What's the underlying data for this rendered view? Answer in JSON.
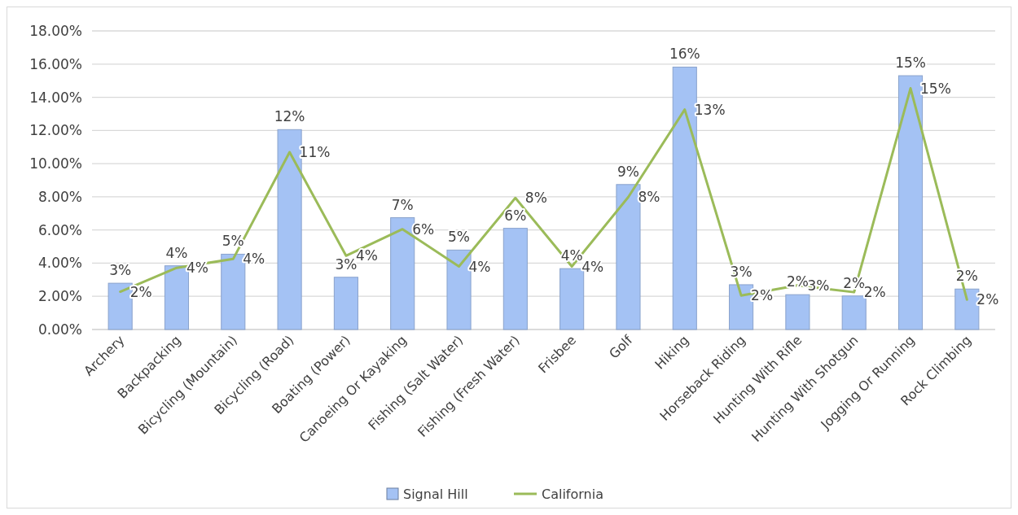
{
  "chart_data": {
    "type": "bar",
    "categories": [
      "Archery",
      "Backpacking",
      "Bicycling (Mountain)",
      "Bicycling (Road)",
      "Boating (Power)",
      "Canoeing Or Kayaking",
      "Fishing (Salt Water)",
      "Fishing (Fresh Water)",
      "Frisbee",
      "Golf",
      "Hiking",
      "Horseback Riding",
      "Hunting With Rifle",
      "Hunting With Shotgun",
      "Jogging Or Running",
      "Rock Climbing"
    ],
    "series": [
      {
        "name": "Signal Hill",
        "color": "#a4c2f4",
        "values": [
          2.79,
          3.84,
          4.54,
          12.05,
          3.15,
          6.74,
          4.79,
          6.1,
          3.67,
          8.74,
          15.82,
          2.7,
          2.1,
          2.02,
          15.3,
          2.44
        ],
        "value_labels": [
          "3%",
          "4%",
          "5%",
          "12%",
          "3%",
          "7%",
          "5%",
          "6%",
          "4%",
          "9%",
          "16%",
          "3%",
          "2%",
          "2%",
          "15%",
          "2%"
        ]
      },
      {
        "name": "California",
        "type": "line",
        "color": "#9bbb59",
        "values": [
          2.28,
          3.72,
          4.25,
          10.69,
          4.45,
          6.05,
          3.8,
          7.93,
          3.8,
          7.98,
          13.26,
          2.05,
          2.66,
          2.25,
          14.54,
          1.8
        ],
        "value_labels": [
          "2%",
          "4%",
          "4%",
          "11%",
          "4%",
          "6%",
          "4%",
          "8%",
          "4%",
          "8%",
          "13%",
          "2%",
          "3%",
          "2%",
          "15%",
          "2%"
        ]
      }
    ],
    "ylim": [
      0,
      18
    ],
    "yticks": [
      {
        "value": 0,
        "label": "0.00%"
      },
      {
        "value": 2,
        "label": "2.00%"
      },
      {
        "value": 4,
        "label": "4.00%"
      },
      {
        "value": 6,
        "label": "6.00%"
      },
      {
        "value": 8,
        "label": "8.00%"
      },
      {
        "value": 10,
        "label": "10.00%"
      },
      {
        "value": 12,
        "label": "12.00%"
      },
      {
        "value": 14,
        "label": "14.00%"
      },
      {
        "value": 16,
        "label": "16.00%"
      },
      {
        "value": 18,
        "label": "18.00%"
      }
    ],
    "grid": "y",
    "legend": "bottom",
    "marker": "none",
    "line_style": "solid"
  }
}
